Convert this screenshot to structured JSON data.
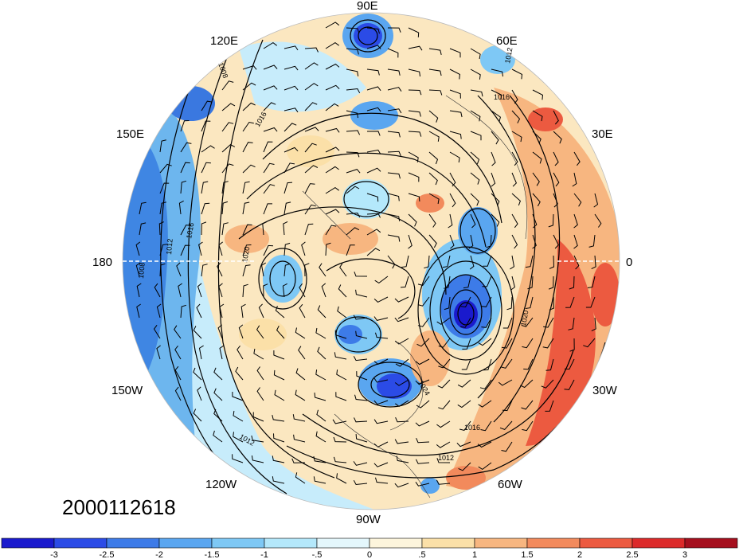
{
  "longitude_labels": {
    "e90": "90E",
    "e120": "120E",
    "e60": "60E",
    "e150": "150E",
    "e30": "30E",
    "w180": "180",
    "zero": "0",
    "w150": "150W",
    "w30": "30W",
    "w120": "120W",
    "w60": "60W",
    "w90": "90W"
  },
  "date_label": "2000112618",
  "isobar_labels": [
    "1008",
    "1012",
    "1016",
    "1020",
    "1024",
    "1016",
    "1012",
    "1008",
    "1012",
    "1016",
    "1020",
    "1016",
    "1012"
  ],
  "colorbar": {
    "colors": [
      "#1a1acd",
      "#2b4be6",
      "#3d7be8",
      "#5aa6f0",
      "#7ec8f5",
      "#b4e8fb",
      "#e4f7fc",
      "#fdf5dc",
      "#fbe0a8",
      "#f7b680",
      "#f28a5c",
      "#ec5a40",
      "#dc2a2a",
      "#a50f1e"
    ],
    "tick_labels": [
      "-3",
      "-2.5",
      "-2",
      "-1.5",
      "-1",
      "-.5",
      "0",
      ".5",
      "1",
      "1.5",
      "2",
      "2.5",
      "3"
    ]
  }
}
